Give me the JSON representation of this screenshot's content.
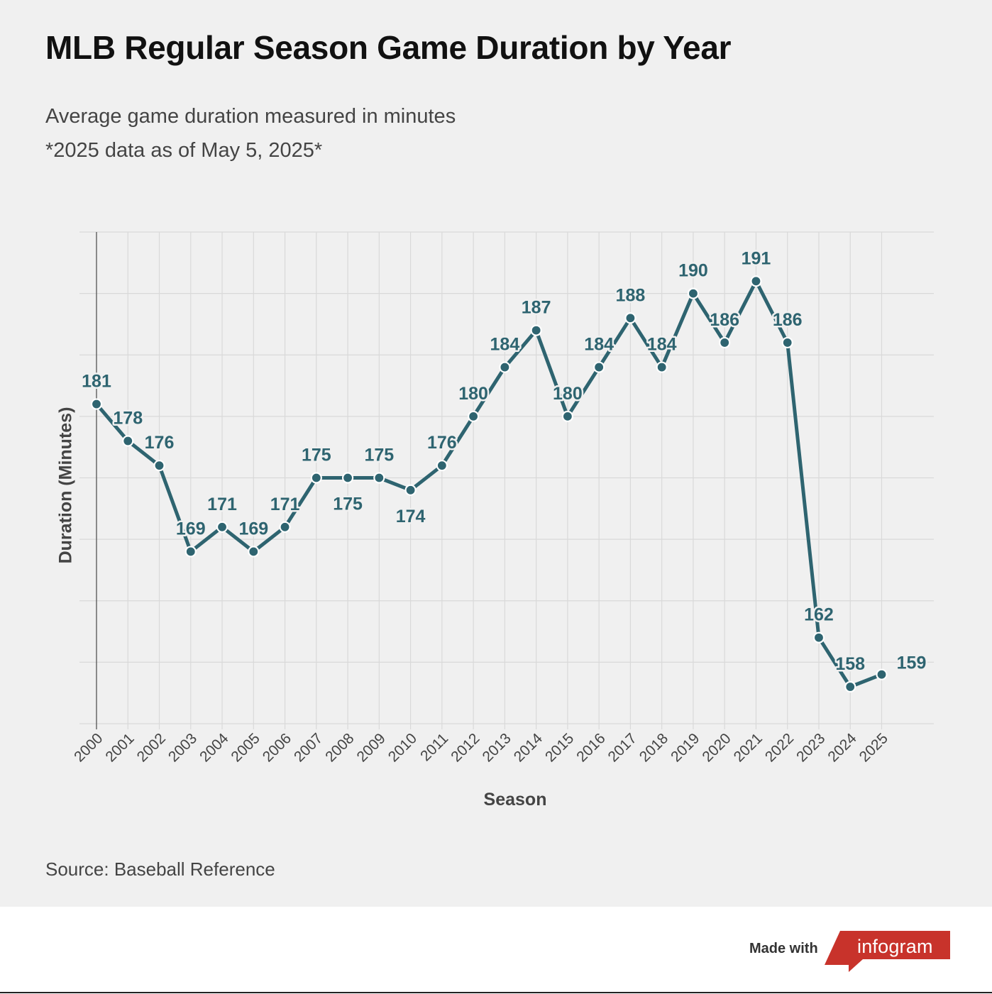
{
  "header": {
    "title": "MLB Regular Season Game Duration by Year",
    "subtitle_line1": "Average game duration measured in minutes",
    "subtitle_line2": "*2025 data as of May 5, 2025*"
  },
  "footer": {
    "source": "Source: Baseball Reference",
    "made_with": "Made with",
    "brand": "infogram"
  },
  "colors": {
    "line": "#2e6470",
    "background": "#f0f0f0",
    "grid": "#d9d9d9",
    "brand_red": "#c8332b"
  },
  "chart_data": {
    "type": "line",
    "title": "MLB Regular Season Game Duration by Year",
    "xlabel": "Season",
    "ylabel": "Duration (Minutes)",
    "x": [
      "2000",
      "2001",
      "2002",
      "2003",
      "2004",
      "2005",
      "2006",
      "2007",
      "2008",
      "2009",
      "2010",
      "2011",
      "2012",
      "2013",
      "2014",
      "2015",
      "2016",
      "2017",
      "2018",
      "2019",
      "2020",
      "2021",
      "2022",
      "2023",
      "2024",
      "2025"
    ],
    "series": [
      {
        "values": [
          181,
          178,
          176,
          169,
          171,
          169,
          171,
          175,
          175,
          175,
          174,
          176,
          180,
          184,
          187,
          180,
          184,
          188,
          184,
          190,
          186,
          191,
          186,
          162,
          158,
          159
        ]
      }
    ],
    "ylim": [
      155,
      195
    ],
    "ytick_step": 5,
    "y_tick_labels_shown": false,
    "grid": true,
    "legend": "none",
    "data_labels": true
  }
}
